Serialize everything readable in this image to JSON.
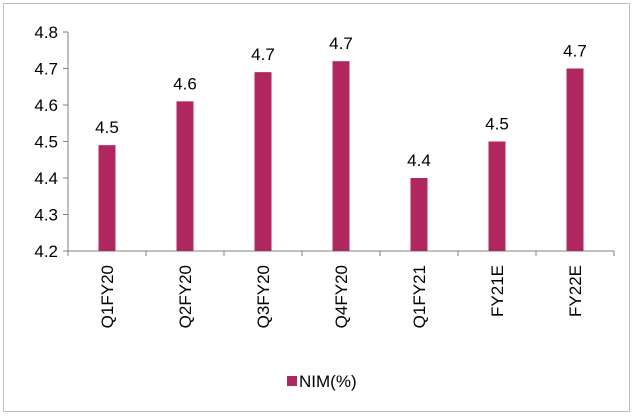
{
  "chart_data": {
    "type": "bar",
    "categories": [
      "Q1FY20",
      "Q2FY20",
      "Q3FY20",
      "Q4FY20",
      "Q1FY21",
      "FY21E",
      "FY22E"
    ],
    "series": [
      {
        "name": "NIM(%)",
        "values": [
          4.49,
          4.61,
          4.69,
          4.72,
          4.4,
          4.5,
          4.7
        ],
        "data_labels": [
          "4.5",
          "4.6",
          "4.7",
          "4.7",
          "4.4",
          "4.5",
          "4.7"
        ],
        "color": "#b0265f"
      }
    ],
    "ylim": [
      4.2,
      4.8
    ],
    "yticks": [
      "4.2",
      "4.3",
      "4.4",
      "4.5",
      "4.6",
      "4.7",
      "4.8"
    ],
    "title": "",
    "xlabel": "",
    "ylabel": "",
    "grid": false,
    "legend": {
      "position": "bottom",
      "label": "NIM(%)"
    }
  }
}
